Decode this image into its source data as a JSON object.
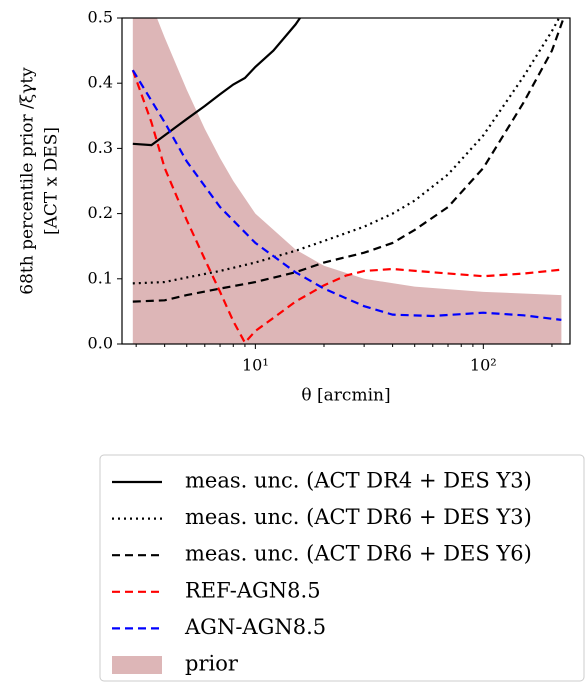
{
  "chart_data": {
    "type": "line",
    "xlabel": "θ [arcmin]",
    "ylabel": [
      "68th percentile prior /ξγty",
      "[ACT x DES]"
    ],
    "xscale": "log",
    "xlim": [
      2.6,
      240
    ],
    "ylim": [
      0,
      0.5
    ],
    "xticks": [
      {
        "value": 10,
        "label": "10¹"
      },
      {
        "value": 100,
        "label": "10²"
      }
    ],
    "yticks": [
      {
        "value": 0,
        "label": "0.0"
      },
      0.1,
      0.2,
      0.3,
      0.4,
      0.5
    ],
    "legend": "below",
    "series": [
      {
        "name": "meas. unc. (ACT DR4 + DES Y3)",
        "color": "#000000",
        "style": "solid",
        "x": [
          2.9,
          3.5,
          4,
          5,
          6,
          7,
          8,
          9,
          10,
          12,
          15,
          15.7
        ],
        "values": [
          0.307,
          0.305,
          0.32,
          0.345,
          0.365,
          0.383,
          0.398,
          0.408,
          0.425,
          0.45,
          0.49,
          0.5
        ]
      },
      {
        "name": "meas. unc. (ACT DR6 + DES Y3)",
        "color": "#000000",
        "style": "dotted",
        "x": [
          2.9,
          4,
          5,
          7,
          10,
          15,
          20,
          30,
          40,
          50,
          70,
          100,
          150,
          200,
          215
        ],
        "values": [
          0.093,
          0.095,
          0.102,
          0.112,
          0.125,
          0.143,
          0.158,
          0.18,
          0.2,
          0.22,
          0.26,
          0.32,
          0.41,
          0.48,
          0.5
        ]
      },
      {
        "name": "meas. unc. (ACT DR6 + DES Y6)",
        "color": "#000000",
        "style": "dashed",
        "x": [
          2.9,
          4,
          5,
          7,
          10,
          15,
          20,
          30,
          40,
          50,
          70,
          100,
          150,
          200,
          225
        ],
        "values": [
          0.065,
          0.067,
          0.075,
          0.085,
          0.095,
          0.11,
          0.125,
          0.14,
          0.155,
          0.175,
          0.21,
          0.27,
          0.37,
          0.45,
          0.5
        ]
      },
      {
        "name": "REF-AGN8.5",
        "color": "#ff0000",
        "style": "dashed",
        "x": [
          2.9,
          3.5,
          4,
          5,
          6,
          7,
          8,
          9,
          10,
          12,
          15,
          20,
          25,
          30,
          40,
          60,
          100,
          150,
          220
        ],
        "values": [
          0.42,
          0.34,
          0.27,
          0.19,
          0.13,
          0.08,
          0.035,
          0.002,
          0.02,
          0.04,
          0.065,
          0.09,
          0.105,
          0.112,
          0.115,
          0.11,
          0.104,
          0.108,
          0.114
        ]
      },
      {
        "name": "AGN-AGN8.5",
        "color": "#0000ff",
        "style": "dashed",
        "x": [
          2.9,
          4,
          5,
          7,
          10,
          15,
          20,
          30,
          40,
          60,
          100,
          150,
          220
        ],
        "values": [
          0.42,
          0.34,
          0.28,
          0.21,
          0.155,
          0.11,
          0.085,
          0.058,
          0.045,
          0.043,
          0.048,
          0.044,
          0.037
        ]
      },
      {
        "name": "prior",
        "color": "#ddb6b7",
        "style": "area",
        "x": [
          2.9,
          3.7,
          4,
          5,
          6,
          7,
          8,
          10,
          15,
          20,
          30,
          50,
          100,
          220
        ],
        "values": [
          0.56,
          0.5,
          0.47,
          0.39,
          0.33,
          0.285,
          0.25,
          0.2,
          0.145,
          0.12,
          0.1,
          0.088,
          0.08,
          0.075
        ]
      }
    ]
  }
}
